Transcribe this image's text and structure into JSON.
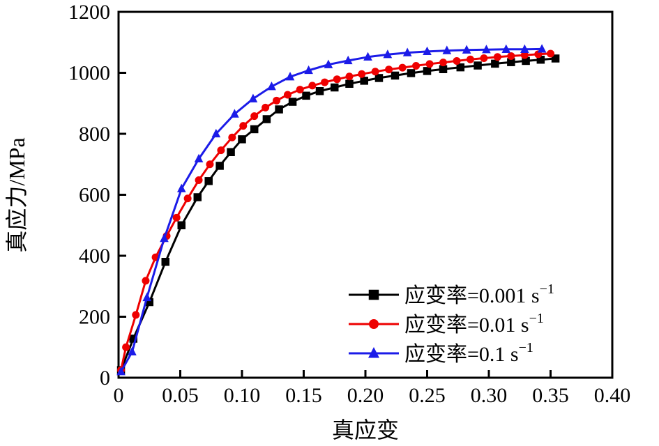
{
  "figure": {
    "background": "#ffffff"
  },
  "chart_data": {
    "type": "line",
    "title": "",
    "xlabel": "真应变",
    "ylabel": "真应力/MPa",
    "xlim": [
      0,
      0.4
    ],
    "ylim": [
      0,
      1200
    ],
    "grid": false,
    "frame": true,
    "tick_direction": "in",
    "xticks": {
      "values": [
        0,
        0.05,
        0.1,
        0.15,
        0.2,
        0.25,
        0.3,
        0.35,
        0.4
      ],
      "labels": [
        "0",
        "0.05",
        "0.10",
        "0.15",
        "0.20",
        "0.25",
        "0.30",
        "0.35",
        "0.40"
      ]
    },
    "yticks": {
      "values": [
        0,
        200,
        400,
        600,
        800,
        1000,
        1200
      ],
      "labels": [
        "0",
        "200",
        "400",
        "600",
        "800",
        "1000",
        "1200"
      ]
    },
    "legend": {
      "position": "inside-lower-right",
      "frame": false
    },
    "series": [
      {
        "label": "应变率=0.001 s",
        "label_sup": "−1",
        "color": "#000000",
        "marker": "square",
        "points": [
          [
            0.002,
            25
          ],
          [
            0.012,
            128
          ],
          [
            0.025,
            248
          ],
          [
            0.038,
            380
          ],
          [
            0.051,
            500
          ],
          [
            0.064,
            592
          ],
          [
            0.073,
            645
          ],
          [
            0.082,
            695
          ],
          [
            0.091,
            740
          ],
          [
            0.1,
            782
          ],
          [
            0.11,
            815
          ],
          [
            0.12,
            848
          ],
          [
            0.13,
            880
          ],
          [
            0.141,
            905
          ],
          [
            0.152,
            925
          ],
          [
            0.163,
            940
          ],
          [
            0.175,
            952
          ],
          [
            0.187,
            964
          ],
          [
            0.199,
            974
          ],
          [
            0.211,
            983
          ],
          [
            0.224,
            991
          ],
          [
            0.237,
            999
          ],
          [
            0.25,
            1006
          ],
          [
            0.263,
            1012
          ],
          [
            0.277,
            1018
          ],
          [
            0.291,
            1024
          ],
          [
            0.305,
            1030
          ],
          [
            0.318,
            1035
          ],
          [
            0.33,
            1039
          ],
          [
            0.342,
            1043
          ],
          [
            0.354,
            1047
          ]
        ]
      },
      {
        "label": "应变率=0.01 s",
        "label_sup": "−1",
        "color": "#ee0000",
        "marker": "circle",
        "points": [
          [
            0.002,
            25
          ],
          [
            0.006,
            100
          ],
          [
            0.014,
            206
          ],
          [
            0.022,
            318
          ],
          [
            0.03,
            395
          ],
          [
            0.039,
            465
          ],
          [
            0.047,
            525
          ],
          [
            0.056,
            588
          ],
          [
            0.065,
            648
          ],
          [
            0.074,
            700
          ],
          [
            0.083,
            746
          ],
          [
            0.092,
            788
          ],
          [
            0.101,
            826
          ],
          [
            0.11,
            858
          ],
          [
            0.119,
            886
          ],
          [
            0.128,
            909
          ],
          [
            0.137,
            928
          ],
          [
            0.147,
            945
          ],
          [
            0.157,
            958
          ],
          [
            0.167,
            969
          ],
          [
            0.177,
            979
          ],
          [
            0.187,
            988
          ],
          [
            0.197,
            996
          ],
          [
            0.208,
            1004
          ],
          [
            0.219,
            1011
          ],
          [
            0.23,
            1017
          ],
          [
            0.241,
            1023
          ],
          [
            0.252,
            1029
          ],
          [
            0.263,
            1034
          ],
          [
            0.274,
            1039
          ],
          [
            0.285,
            1044
          ],
          [
            0.296,
            1048
          ],
          [
            0.307,
            1052
          ],
          [
            0.318,
            1055
          ],
          [
            0.329,
            1058
          ],
          [
            0.34,
            1061
          ],
          [
            0.35,
            1063
          ]
        ]
      },
      {
        "label": "应变率=0.1 s",
        "label_sup": "−1",
        "color": "#1b1be8",
        "marker": "triangle",
        "points": [
          [
            0.002,
            20
          ],
          [
            0.011,
            85
          ],
          [
            0.023,
            263
          ],
          [
            0.037,
            457
          ],
          [
            0.051,
            620
          ],
          [
            0.065,
            718
          ],
          [
            0.079,
            800
          ],
          [
            0.094,
            865
          ],
          [
            0.109,
            915
          ],
          [
            0.124,
            955
          ],
          [
            0.139,
            987
          ],
          [
            0.154,
            1008
          ],
          [
            0.17,
            1027
          ],
          [
            0.186,
            1040
          ],
          [
            0.202,
            1052
          ],
          [
            0.218,
            1060
          ],
          [
            0.234,
            1066
          ],
          [
            0.25,
            1070
          ],
          [
            0.266,
            1073
          ],
          [
            0.282,
            1075
          ],
          [
            0.298,
            1076
          ],
          [
            0.314,
            1077
          ],
          [
            0.329,
            1077
          ],
          [
            0.343,
            1078
          ]
        ]
      }
    ]
  }
}
